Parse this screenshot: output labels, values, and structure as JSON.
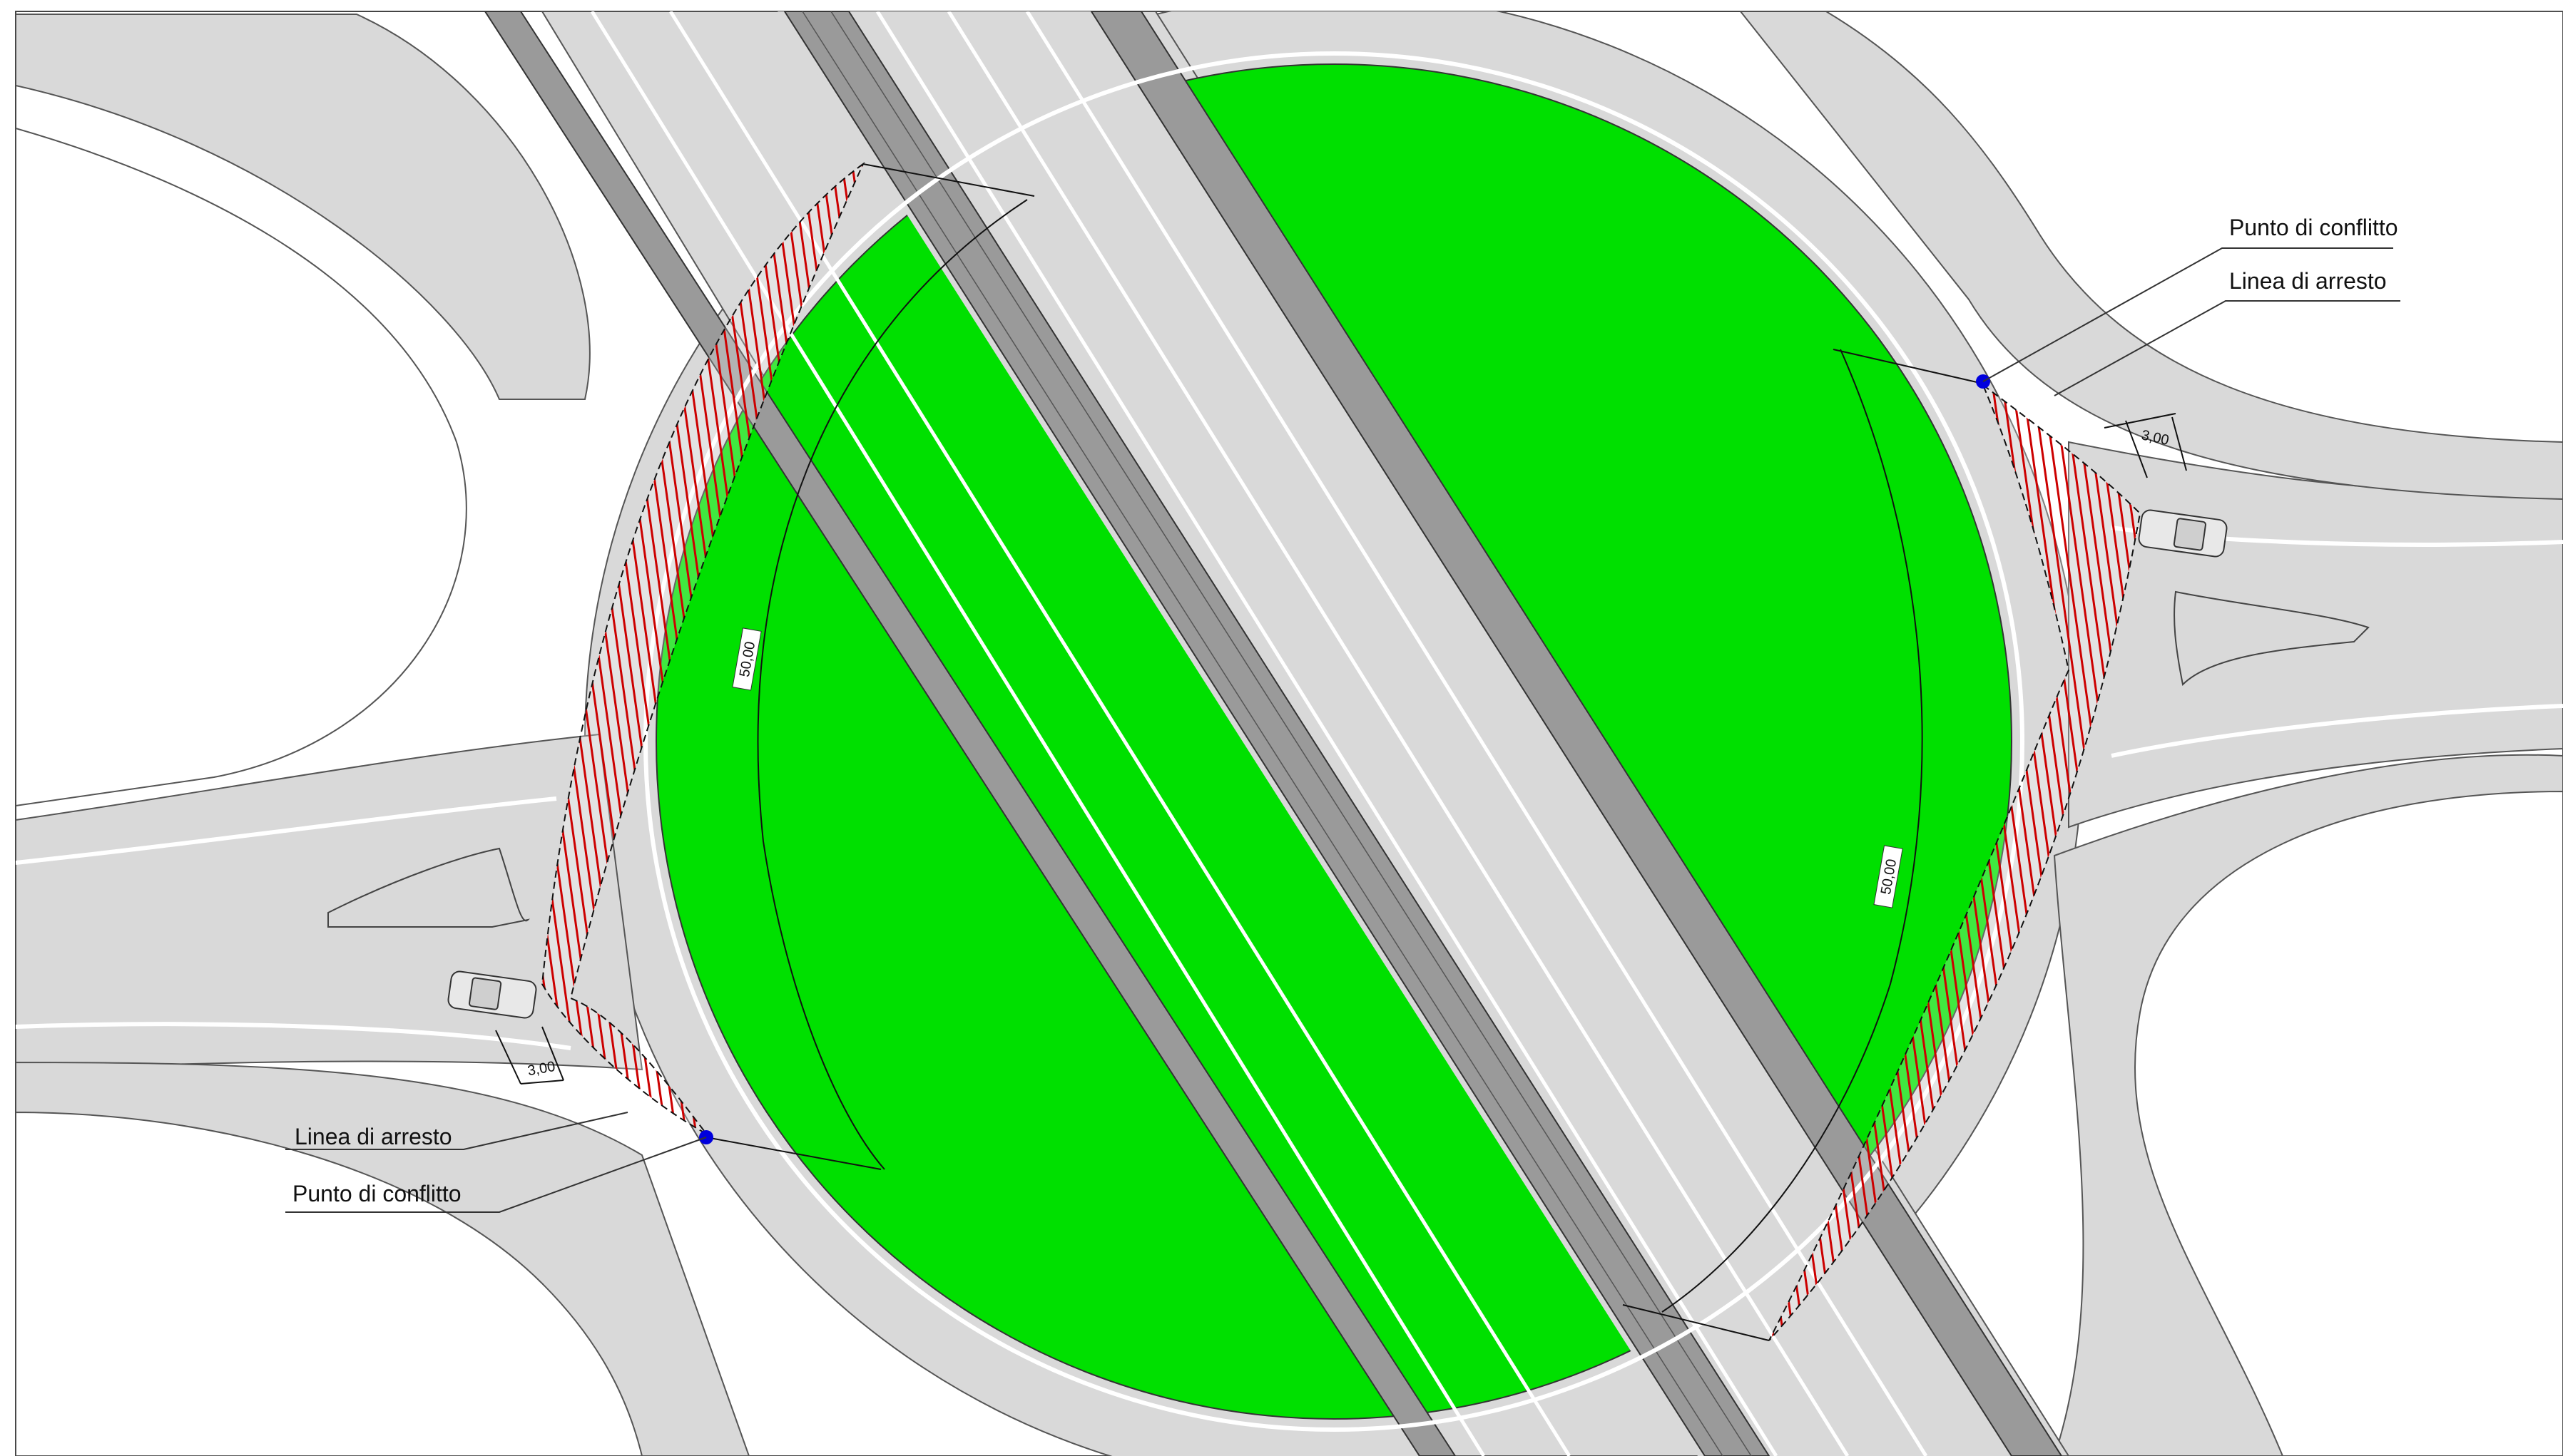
{
  "drawing": {
    "callouts": {
      "east_conflict_point": "Punto di conflitto",
      "east_stop_line": "Linea di arresto",
      "west_stop_line": "Linea di arresto",
      "west_conflict_point": "Punto di conflitto"
    },
    "dimensions": {
      "radius_west": "50,00",
      "radius_east": "50,00",
      "stop_offset_east": "3,00",
      "stop_offset_west": "3,00"
    },
    "colors": {
      "central_island": "#00e000",
      "carriageway": "#d9d9d9",
      "overpass_edge": "#9a9a9a",
      "visibility_hatch": "#cc0000",
      "conflict_point": "#0000dd"
    }
  }
}
